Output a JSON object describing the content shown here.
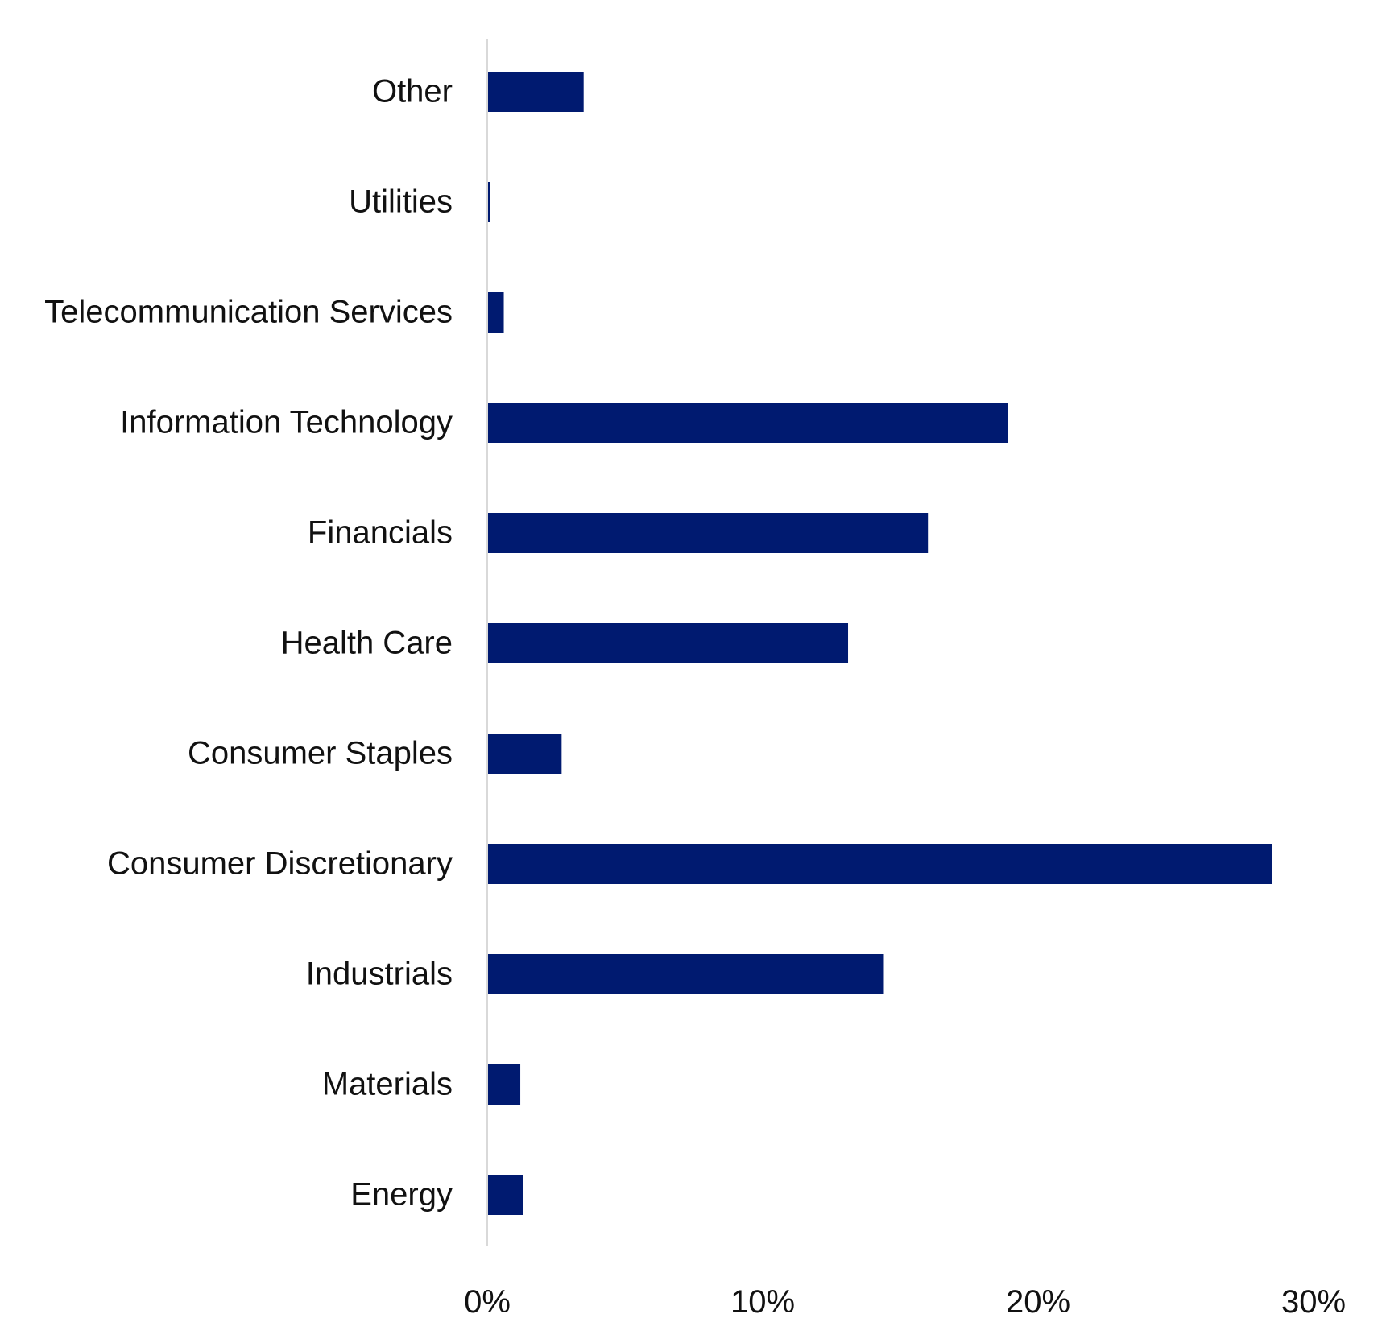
{
  "chart_data": {
    "type": "bar",
    "orientation": "horizontal",
    "categories": [
      "Other",
      "Utilities",
      "Telecommunication Services",
      "Information Technology",
      "Financials",
      "Health Care",
      "Consumer Staples",
      "Consumer Discretionary",
      "Industrials",
      "Materials",
      "Energy"
    ],
    "values": [
      3.5,
      0.1,
      0.6,
      18.9,
      16.0,
      13.1,
      2.7,
      28.5,
      14.4,
      1.2,
      1.3
    ],
    "value_unit": "%",
    "xlim": [
      0,
      30
    ],
    "x_ticks": [
      {
        "value": 0,
        "label": "0%"
      },
      {
        "value": 10,
        "label": "10%"
      },
      {
        "value": 20,
        "label": "20%"
      },
      {
        "value": 30,
        "label": "30%"
      }
    ],
    "title": "",
    "xlabel": "",
    "ylabel": "",
    "grid": false,
    "legend": "none",
    "bar_color": "#001A70",
    "axis_color": "#D9D9D9"
  }
}
